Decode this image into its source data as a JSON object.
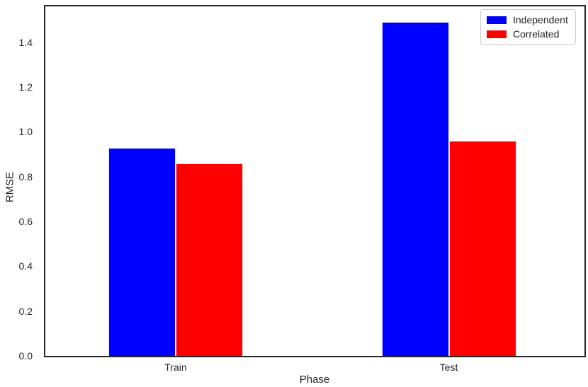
{
  "chart_data": {
    "type": "bar",
    "title": "",
    "xlabel": "Phase",
    "ylabel": "RMSE",
    "categories": [
      "Train",
      "Test"
    ],
    "series": [
      {
        "name": "Independent",
        "color": "#0000ff",
        "values": [
          0.93,
          1.49
        ]
      },
      {
        "name": "Correlated",
        "color": "#ff0000",
        "values": [
          0.86,
          0.96
        ]
      }
    ],
    "ylim": [
      0,
      1.56
    ],
    "yticks": [
      0.0,
      0.2,
      0.4,
      0.6,
      0.8,
      1.0,
      1.2,
      1.4
    ],
    "ytick_labels": [
      "0.0",
      "0.2",
      "0.4",
      "0.6",
      "0.8",
      "1.0",
      "1.2",
      "1.4"
    ],
    "grid": false,
    "legend_position": "upper right",
    "background_color": "#ffffff",
    "spine_color": "#262626"
  }
}
